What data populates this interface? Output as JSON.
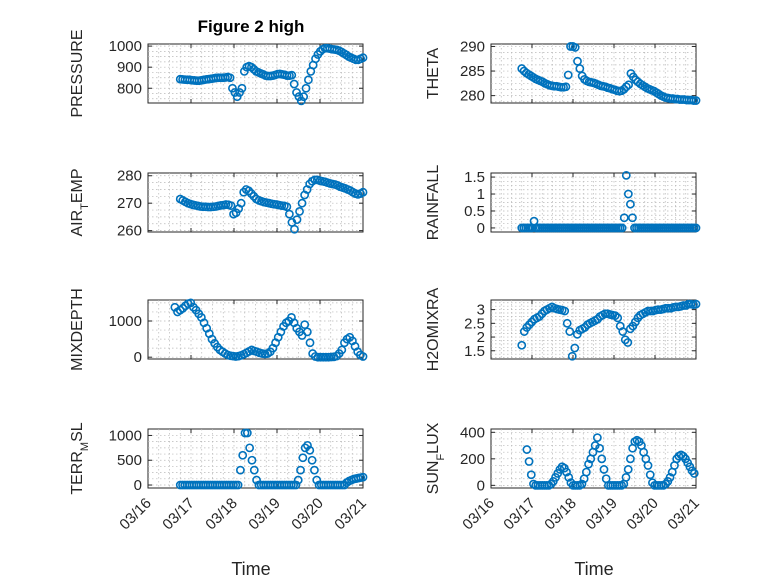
{
  "figure": {
    "title": "Figure 2 high",
    "xlabel": "Time",
    "x_ticks": [
      "03/16",
      "03/17",
      "03/18",
      "03/19",
      "03/20",
      "03/21"
    ],
    "marker_color": "#0072BD"
  },
  "chart_data": [
    {
      "type": "scatter",
      "title": "Figure 2 high",
      "ylabel": "PRESSURE",
      "xlabel": "",
      "x_range": [
        "03/16",
        "03/21"
      ],
      "ylim": [
        730,
        1010
      ],
      "yticks": [
        800,
        900,
        1000
      ],
      "ytick_labels": [
        "800",
        "900",
        "1000"
      ],
      "grid": true,
      "series": [
        {
          "x_start": "03/16 18:00",
          "x_end": "03/21 00:00",
          "values": [
            843,
            842,
            841,
            840,
            840,
            838,
            837,
            836,
            836,
            838,
            840,
            842,
            843,
            845,
            847,
            849,
            850,
            850,
            850,
            851,
            853,
            850,
            800,
            780,
            760,
            780,
            800,
            880,
            900,
            905,
            900,
            890,
            880,
            875,
            870,
            866,
            860,
            858,
            858,
            860,
            863,
            867,
            868,
            866,
            864,
            860,
            860,
            862,
            820,
            780,
            760,
            740,
            760,
            800,
            840,
            880,
            910,
            940,
            960,
            975,
            985,
            990,
            990,
            988,
            985,
            984,
            982,
            978,
            972,
            965,
            958,
            950,
            945,
            940,
            935,
            935,
            940,
            945
          ]
        }
      ]
    },
    {
      "type": "scatter",
      "title": "",
      "ylabel": "THETA",
      "xlabel": "",
      "x_range": [
        "03/16",
        "03/21"
      ],
      "ylim": [
        278.5,
        290.5
      ],
      "yticks": [
        280,
        285,
        290
      ],
      "ytick_labels": [
        "280",
        "285",
        "290"
      ],
      "grid": true,
      "series": [
        {
          "x_start": "03/16 18:00",
          "x_end": "03/21 00:00",
          "values": [
            285.5,
            285,
            284.6,
            284.3,
            284,
            283.7,
            283.4,
            283.2,
            283,
            282.8,
            282.5,
            282.3,
            282.1,
            282,
            281.9,
            281.9,
            281.8,
            281.7,
            281.7,
            281.8,
            284.2,
            290,
            290,
            289.8,
            287,
            285.5,
            284,
            283.3,
            283,
            282.8,
            282.7,
            282.6,
            282.4,
            282.2,
            282,
            281.9,
            281.8,
            281.6,
            281.5,
            281.3,
            281.2,
            281,
            280.9,
            281,
            281.3,
            281.8,
            282.2,
            284.5,
            283.8,
            283.2,
            282.8,
            282.4,
            282.1,
            281.8,
            281.5,
            281.3,
            281.1,
            280.9,
            280.6,
            280.3,
            280,
            279.8,
            279.6,
            279.5,
            279.4,
            279.4,
            279.3,
            279.3,
            279.2,
            279.2,
            279.2,
            279.1,
            279.1,
            279.1,
            279,
            279
          ]
        }
      ]
    },
    {
      "type": "scatter",
      "title": "",
      "ylabel": "AIR_TEMP",
      "xlabel": "",
      "x_range": [
        "03/16",
        "03/21"
      ],
      "ylim": [
        259.5,
        281
      ],
      "yticks": [
        260,
        270,
        280
      ],
      "ytick_labels": [
        "260",
        "270",
        "280"
      ],
      "grid": true,
      "series": [
        {
          "x_start": "03/16 18:00",
          "x_end": "03/21 00:00",
          "values": [
            271.5,
            271,
            270.5,
            270,
            269.7,
            269.4,
            269.2,
            269,
            268.8,
            268.7,
            268.7,
            268.6,
            268.6,
            268.7,
            268.8,
            269,
            269.2,
            269.3,
            269.5,
            269.4,
            269.1,
            266,
            266.5,
            268,
            270,
            274,
            275,
            274.5,
            273.5,
            272.5,
            271.5,
            271,
            270.7,
            270.4,
            270.2,
            270,
            269.8,
            269.6,
            269.5,
            269.3,
            269.1,
            269,
            268.7,
            266,
            263,
            260.5,
            264,
            267,
            270,
            273,
            275,
            277,
            278,
            278.5,
            278.5,
            278.2,
            278,
            277.8,
            277.5,
            277.2,
            277,
            276.8,
            276.5,
            276,
            275.7,
            275.4,
            275,
            274.6,
            274,
            273.5,
            273.2,
            273.5,
            274
          ]
        }
      ]
    },
    {
      "type": "scatter",
      "title": "",
      "ylabel": "RAINFALL",
      "xlabel": "",
      "x_range": [
        "03/16",
        "03/21"
      ],
      "ylim": [
        -0.12,
        1.62
      ],
      "yticks": [
        0,
        0.5,
        1,
        1.5
      ],
      "ytick_labels": [
        "0",
        "0.5",
        "1",
        "1.5"
      ],
      "grid": true,
      "series": [
        {
          "x_start": "03/16 18:00",
          "x_end": "03/21 00:00",
          "values": [
            0,
            0,
            0,
            0,
            0,
            0,
            0.2,
            0,
            0,
            0,
            0,
            0,
            0,
            0,
            0,
            0,
            0,
            0,
            0,
            0,
            0,
            0,
            0,
            0,
            0,
            0,
            0,
            0,
            0,
            0,
            0,
            0,
            0,
            0,
            0,
            0,
            0,
            0,
            0,
            0,
            0,
            0,
            0,
            0,
            0,
            0,
            0,
            0,
            0,
            0,
            0.3,
            1.55,
            1.0,
            0.7,
            0.3,
            0,
            0,
            0,
            0,
            0,
            0,
            0,
            0,
            0,
            0,
            0,
            0,
            0,
            0,
            0,
            0,
            0,
            0,
            0,
            0,
            0,
            0,
            0,
            0,
            0,
            0,
            0,
            0,
            0,
            0,
            0
          ]
        }
      ]
    },
    {
      "type": "scatter",
      "title": "",
      "ylabel": "MIXDEPTH",
      "xlabel": "",
      "x_range": [
        "03/16",
        "03/21"
      ],
      "ylim": [
        -50,
        1580
      ],
      "yticks": [
        0,
        1000
      ],
      "ytick_labels": [
        "0",
        "1000"
      ],
      "grid": true,
      "series": [
        {
          "x_start": "03/16 15:00",
          "x_end": "03/21 00:00",
          "values": [
            1380,
            1250,
            1300,
            1350,
            1420,
            1480,
            1500,
            1380,
            1300,
            1200,
            1100,
            950,
            800,
            650,
            500,
            380,
            280,
            200,
            150,
            100,
            60,
            40,
            30,
            20,
            30,
            50,
            80,
            120,
            160,
            200,
            170,
            150,
            120,
            100,
            90,
            100,
            150,
            250,
            400,
            550,
            700,
            850,
            950,
            1000,
            1100,
            950,
            800,
            700,
            600,
            900,
            700,
            400,
            100,
            20,
            0,
            0,
            0,
            0,
            0,
            5,
            10,
            30,
            100,
            200,
            400,
            500,
            550,
            450,
            300,
            150,
            60,
            20
          ]
        }
      ]
    },
    {
      "type": "scatter",
      "title": "",
      "ylabel": "H2OMIXRA",
      "xlabel": "",
      "x_range": [
        "03/16",
        "03/21"
      ],
      "ylim": [
        1.2,
        3.35
      ],
      "yticks": [
        1.5,
        2,
        2.5,
        3
      ],
      "ytick_labels": [
        "1.5",
        "2",
        "2.5",
        "3"
      ],
      "grid": true,
      "series": [
        {
          "x_start": "03/16 18:00",
          "x_end": "03/21 00:00",
          "values": [
            1.7,
            2.2,
            2.35,
            2.45,
            2.55,
            2.65,
            2.7,
            2.75,
            2.85,
            2.95,
            3.0,
            3.05,
            3.1,
            3.05,
            3.02,
            3.0,
            2.98,
            2.95,
            2.5,
            2.2,
            1.3,
            1.6,
            2.1,
            2.25,
            2.3,
            2.35,
            2.45,
            2.5,
            2.55,
            2.6,
            2.65,
            2.75,
            2.8,
            2.85,
            2.85,
            2.82,
            2.8,
            2.78,
            2.7,
            2.4,
            2.2,
            1.9,
            1.8,
            2.3,
            2.4,
            2.55,
            2.7,
            2.8,
            2.85,
            2.9,
            2.95,
            2.95,
            2.95,
            2.98,
            3.0,
            3.0,
            3.02,
            3.05,
            3.05,
            3.05,
            3.08,
            3.1,
            3.1,
            3.12,
            3.15,
            3.15,
            3.2,
            3.2,
            3.18,
            3.2
          ]
        }
      ]
    },
    {
      "type": "scatter",
      "title": "",
      "ylabel": "TERR_MSL",
      "xlabel": "",
      "x_range": [
        "03/16",
        "03/21"
      ],
      "ylim": [
        -60,
        1130
      ],
      "yticks": [
        0,
        500,
        1000
      ],
      "ytick_labels": [
        "0",
        "500",
        "1000"
      ],
      "grid": true,
      "series": [
        {
          "x_start": "03/16 18:00",
          "x_end": "03/21 00:00",
          "values": [
            0,
            0,
            0,
            0,
            0,
            0,
            0,
            0,
            0,
            0,
            0,
            0,
            0,
            0,
            0,
            0,
            0,
            0,
            0,
            0,
            0,
            0,
            0,
            0,
            0,
            0,
            300,
            600,
            1050,
            1050,
            750,
            500,
            300,
            100,
            0,
            0,
            0,
            0,
            0,
            0,
            0,
            0,
            0,
            0,
            0,
            0,
            0,
            0,
            0,
            0,
            0,
            100,
            300,
            550,
            750,
            800,
            700,
            500,
            300,
            100,
            0,
            0,
            0,
            0,
            0,
            0,
            0,
            0,
            0,
            0,
            0,
            0,
            50,
            80,
            100,
            120,
            130,
            140,
            150,
            160
          ]
        }
      ]
    },
    {
      "type": "scatter",
      "title": "",
      "ylabel": "SUN_FLUX",
      "xlabel": "",
      "x_range": [
        "03/16",
        "03/21"
      ],
      "ylim": [
        -20,
        425
      ],
      "yticks": [
        0,
        200,
        400
      ],
      "ytick_labels": [
        "0",
        "200",
        "400"
      ],
      "grid": true,
      "series": [
        {
          "x_start": "03/16 21:00",
          "x_end": "03/20 23:00",
          "values": [
            270,
            180,
            80,
            10,
            0,
            0,
            0,
            0,
            0,
            0,
            0,
            10,
            30,
            60,
            90,
            120,
            140,
            130,
            100,
            60,
            20,
            0,
            0,
            0,
            0,
            10,
            50,
            100,
            160,
            200,
            250,
            300,
            360,
            280,
            200,
            120,
            50,
            0,
            0,
            0,
            0,
            0,
            0,
            0,
            10,
            60,
            120,
            200,
            280,
            330,
            340,
            330,
            300,
            250,
            200,
            150,
            80,
            20,
            0,
            0,
            0,
            0,
            0,
            10,
            30,
            60,
            100,
            150,
            200,
            220,
            230,
            220,
            200,
            170,
            140,
            110,
            90
          ]
        }
      ]
    }
  ]
}
